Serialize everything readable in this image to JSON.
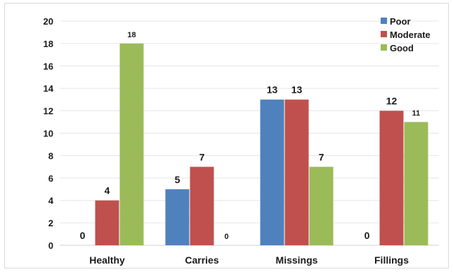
{
  "chart_data": {
    "type": "bar",
    "title": "",
    "xlabel": "",
    "ylabel": "",
    "categories": [
      "Healthy",
      "Carries",
      "Missings",
      "Fillings"
    ],
    "series": [
      {
        "name": "Poor",
        "color": "#4f81bd",
        "values": [
          0,
          5,
          13,
          0
        ],
        "labels": [
          "0",
          "5",
          "13",
          "0"
        ]
      },
      {
        "name": "Moderate",
        "color": "#c0504d",
        "values": [
          4,
          7,
          13,
          12
        ],
        "labels": [
          "4",
          "7",
          "13",
          "12"
        ]
      },
      {
        "name": "Good",
        "color": "#9bbb59",
        "values": [
          18,
          0,
          7,
          11
        ],
        "labels": [
          "18",
          "0",
          "7",
          "11"
        ]
      }
    ],
    "ylim": [
      0,
      20
    ],
    "yticks": [
      0,
      2,
      4,
      6,
      8,
      10,
      12,
      14,
      16,
      18,
      20
    ],
    "grid": true,
    "legend_position": "top-right"
  }
}
